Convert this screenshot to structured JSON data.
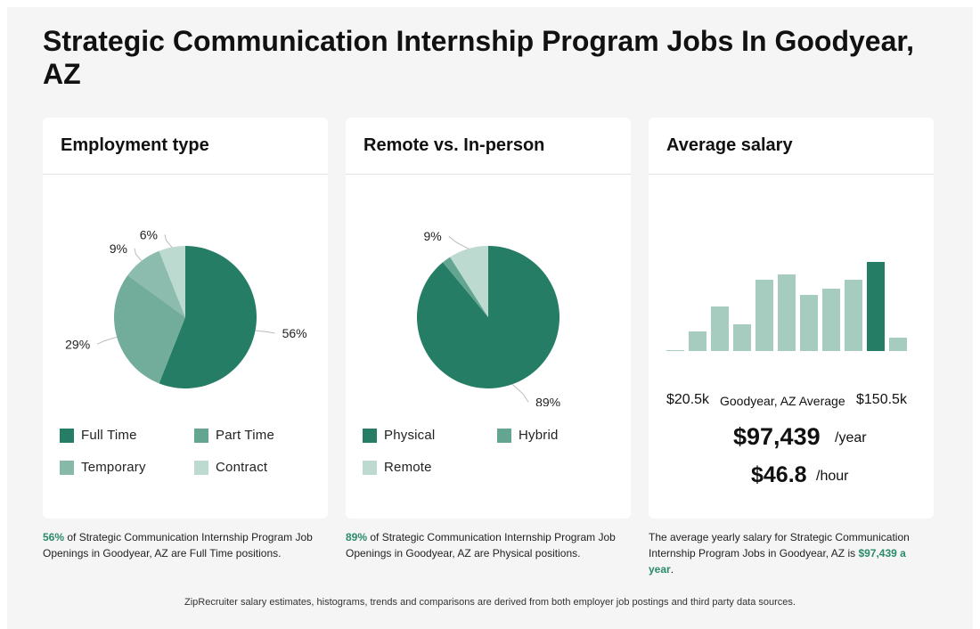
{
  "page": {
    "title": "Strategic Communication Internship Program Jobs In Goodyear, AZ"
  },
  "colors": {
    "dark": "#267d66",
    "mid": "#64a591",
    "light": "#a6cbbf",
    "lighter": "#bcdad0",
    "accent": "#2a8a6a"
  },
  "cards": {
    "employment": {
      "title": "Employment type"
    },
    "remote": {
      "title": "Remote vs. In-person"
    },
    "salary": {
      "title": "Average salary"
    }
  },
  "chart_data": [
    {
      "type": "pie",
      "title": "Employment type",
      "labels": [
        "Full Time",
        "Part Time",
        "Temporary",
        "Contract"
      ],
      "values": [
        56,
        29,
        9,
        6
      ],
      "value_labels": [
        "56%",
        "29%",
        "9%",
        "6%"
      ]
    },
    {
      "type": "pie",
      "title": "Remote vs. In-person",
      "labels": [
        "Physical",
        "Hybrid",
        "Remote"
      ],
      "values": [
        89,
        2,
        9
      ],
      "value_labels": [
        "89%",
        "",
        "9%"
      ]
    },
    {
      "type": "bar",
      "title": "Average salary",
      "values": [
        1,
        22,
        50,
        30,
        80,
        86,
        63,
        70,
        80,
        100,
        15
      ],
      "highlight_index": 9,
      "ylim": [
        0,
        100
      ]
    }
  ],
  "salary": {
    "min_label": "$20.5k",
    "mid_label": "Goodyear, AZ Average",
    "max_label": "$150.5k",
    "yearly": "$97,439",
    "yearly_unit": "/year",
    "hourly": "$46.8",
    "hourly_unit": "/hour"
  },
  "descriptions": {
    "employment": {
      "highlight": "56%",
      "text": " of Strategic Communication Internship Program Job Openings in Goodyear, AZ are Full Time positions."
    },
    "remote": {
      "highlight": "89%",
      "text": " of Strategic Communication Internship Program Job Openings in Goodyear, AZ are Physical positions."
    },
    "salary": {
      "text": "The average yearly salary for Strategic Communication Internship Program Jobs in Goodyear, AZ is ",
      "highlight": "$97,439 a year",
      "end": "."
    }
  },
  "footer": {
    "text": "ZipRecruiter salary estimates, histograms, trends and comparisons are derived from both employer job postings and third party data sources."
  }
}
